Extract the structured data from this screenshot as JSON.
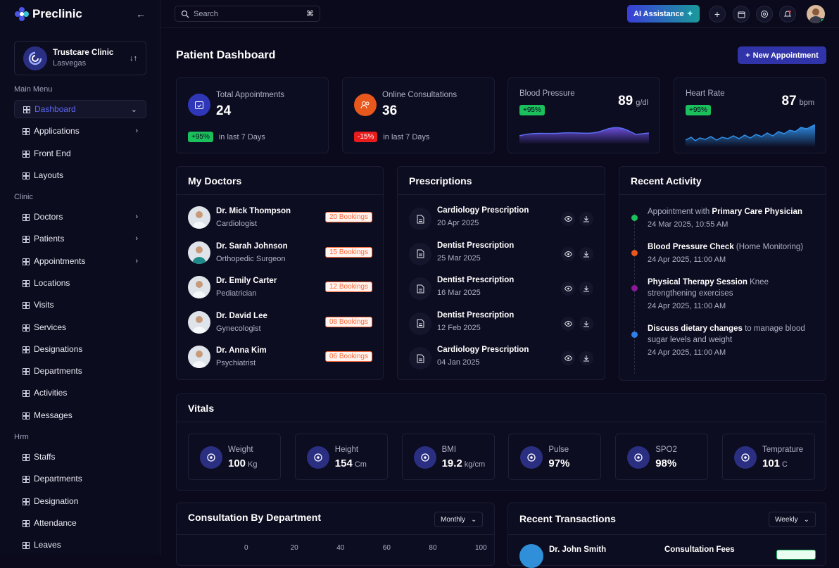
{
  "app": {
    "name": "Preclinic"
  },
  "sidebar": {
    "clinic": {
      "name": "Trustcare Clinic",
      "location": "Lasvegas"
    },
    "sections": {
      "main": "Main Menu",
      "clinic": "Clinic",
      "hrm": "Hrm"
    },
    "main_items": [
      {
        "label": "Dashboard",
        "active": true,
        "chevron": true
      },
      {
        "label": "Applications",
        "chevron": true
      },
      {
        "label": "Front End"
      },
      {
        "label": "Layouts"
      }
    ],
    "clinic_items": [
      {
        "label": "Doctors",
        "chevron": true
      },
      {
        "label": "Patients",
        "chevron": true
      },
      {
        "label": "Appointments",
        "chevron": true
      },
      {
        "label": "Locations"
      },
      {
        "label": "Visits"
      },
      {
        "label": "Services"
      },
      {
        "label": "Designations"
      },
      {
        "label": "Departments"
      },
      {
        "label": "Activities"
      },
      {
        "label": "Messages"
      }
    ],
    "hrm_items": [
      {
        "label": "Staffs"
      },
      {
        "label": "Departments"
      },
      {
        "label": "Designation"
      },
      {
        "label": "Attendance"
      },
      {
        "label": "Leaves"
      }
    ]
  },
  "topbar": {
    "search_placeholder": "Search",
    "shortcut": "⌘",
    "ai_label": "AI Assistance"
  },
  "page": {
    "title": "Patient Dashboard",
    "new_button": "New Appointment"
  },
  "stats": [
    {
      "label": "Total Appointments",
      "value": "24",
      "change": "+95%",
      "period": "in last 7 Days",
      "color": "#2f37b8"
    },
    {
      "label": "Online Consultations",
      "value": "36",
      "change": "-15%",
      "period": "in last 7 Days",
      "color": "#e8571c"
    }
  ],
  "vitals_cards": [
    {
      "label": "Blood Pressure",
      "value": "89",
      "unit": "g/dl",
      "change": "+95%"
    },
    {
      "label": "Heart Rate",
      "value": "87",
      "unit": "bpm",
      "change": "+95%"
    }
  ],
  "doctors": {
    "title": "My Doctors",
    "items": [
      {
        "name": "Dr. Mick Thompson",
        "role": "Cardiologist",
        "bookings": "20 Bookings"
      },
      {
        "name": "Dr. Sarah Johnson",
        "role": "Orthopedic Surgeon",
        "bookings": "15 Bookings"
      },
      {
        "name": "Dr. Emily Carter",
        "role": "Pediatrician",
        "bookings": "12 Bookings"
      },
      {
        "name": "Dr. David Lee",
        "role": "Gynecologist",
        "bookings": "08 Bookings"
      },
      {
        "name": "Dr. Anna Kim",
        "role": "Psychiatrist",
        "bookings": "06 Bookings"
      }
    ]
  },
  "prescriptions": {
    "title": "Prescriptions",
    "items": [
      {
        "name": "Cardiology Prescription",
        "date": "20 Apr 2025"
      },
      {
        "name": "Dentist Prescription",
        "date": "25 Mar 2025"
      },
      {
        "name": "Dentist Prescription",
        "date": "16 Mar 2025"
      },
      {
        "name": "Dentist Prescription",
        "date": "12 Feb 2025"
      },
      {
        "name": "Cardiology Prescription",
        "date": "04 Jan 2025"
      }
    ]
  },
  "activity": {
    "title": "Recent Activity",
    "items": [
      {
        "pre": "Appointment with ",
        "bold": "Primary Care Physician",
        "post": "",
        "time": "24 Mar 2025, 10:55 AM",
        "color": "#1bbf5c"
      },
      {
        "pre": "",
        "bold": "Blood Pressure Check",
        "post": " (Home Monitoring)",
        "time": "24 Apr 2025, 11:00 AM",
        "color": "#e8571c"
      },
      {
        "pre": "",
        "bold": "Physical Therapy Session",
        "post": " Knee strengthening exercises",
        "time": "24 Apr 2025, 11:00 AM",
        "color": "#8b1a9a"
      },
      {
        "pre": "",
        "bold": "Discuss dietary changes",
        "post": " to manage blood sugar levels and weight",
        "time": "24 Apr 2025, 11:00 AM",
        "color": "#2f7fe8"
      }
    ]
  },
  "vitals": {
    "title": "Vitals",
    "items": [
      {
        "label": "Weight",
        "value": "100",
        "unit": "Kg"
      },
      {
        "label": "Height",
        "value": "154",
        "unit": "Cm"
      },
      {
        "label": "BMI",
        "value": "19.2",
        "unit": "kg/cm"
      },
      {
        "label": "Pulse",
        "value": "97%",
        "unit": ""
      },
      {
        "label": "SPO2",
        "value": "98%",
        "unit": ""
      },
      {
        "label": "Temprature",
        "value": "101",
        "unit": "C"
      }
    ]
  },
  "consultation": {
    "title": "Consultation By Department",
    "filter": "Monthly",
    "ticks": [
      "0",
      "20",
      "40",
      "60",
      "80",
      "100"
    ]
  },
  "transactions": {
    "title": "Recent Transactions",
    "filter": "Weekly",
    "first": {
      "name": "Dr. John Smith",
      "type": "Consultation Fees"
    }
  }
}
